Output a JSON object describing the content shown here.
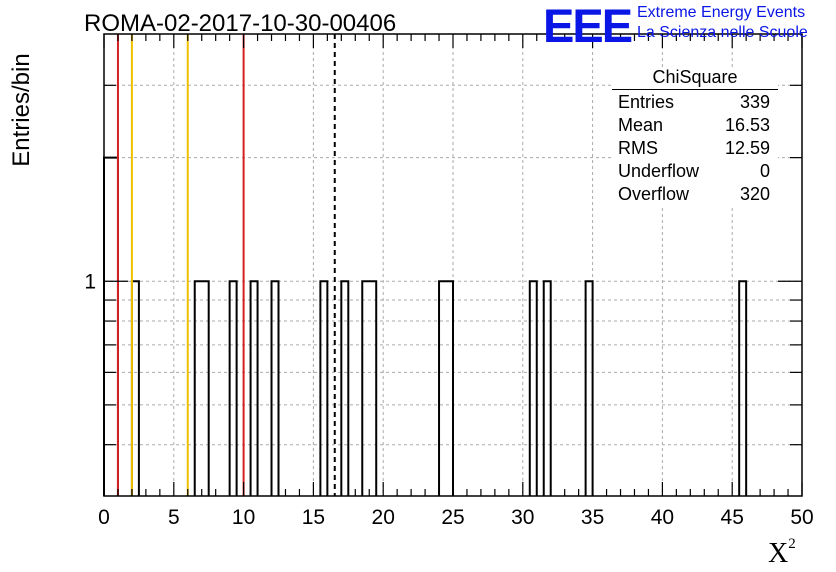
{
  "title": "ROMA-02-2017-10-30-00406",
  "logo": {
    "text": "EEE",
    "line1": "Extreme Energy Events",
    "line2": "La Scienza nelle Scuole"
  },
  "stats": {
    "title": "ChiSquare",
    "rows": [
      {
        "label": "Entries",
        "value": "339"
      },
      {
        "label": "Mean",
        "value": "16.53"
      },
      {
        "label": "RMS",
        "value": "12.59"
      },
      {
        "label": "Underflow",
        "value": "0"
      },
      {
        "label": "Overflow",
        "value": "320"
      }
    ]
  },
  "colors": {
    "red_line": "#d42020",
    "yellow_line": "#f0c000",
    "mean_line": "#000000",
    "grid": "#aaaaaa"
  },
  "chart_data": {
    "type": "histogram",
    "title": "ROMA-02-2017-10-30-00406",
    "xlabel": "X",
    "xlabel_superscript": "2",
    "ylabel": "Entries/bin",
    "xlim": [
      0,
      50
    ],
    "ylim": [
      0.3,
      4
    ],
    "yscale": "log",
    "bin_width": 0.5,
    "grid": true,
    "x_ticks": [
      "0",
      "5",
      "10",
      "15",
      "20",
      "25",
      "30",
      "35",
      "40",
      "45",
      "50"
    ],
    "y_tick_labels": [
      "1"
    ],
    "bins": [
      {
        "x0": 0.0,
        "x1": 1.0,
        "count": 2
      },
      {
        "x0": 2.0,
        "x1": 2.5,
        "count": 1
      },
      {
        "x0": 6.5,
        "x1": 7.5,
        "count": 1
      },
      {
        "x0": 9.0,
        "x1": 9.5,
        "count": 1
      },
      {
        "x0": 10.5,
        "x1": 11.0,
        "count": 1
      },
      {
        "x0": 12.0,
        "x1": 12.5,
        "count": 1
      },
      {
        "x0": 15.5,
        "x1": 16.0,
        "count": 1
      },
      {
        "x0": 17.0,
        "x1": 17.5,
        "count": 1
      },
      {
        "x0": 18.5,
        "x1": 19.5,
        "count": 1
      },
      {
        "x0": 24.0,
        "x1": 25.0,
        "count": 1
      },
      {
        "x0": 30.5,
        "x1": 31.0,
        "count": 1
      },
      {
        "x0": 31.5,
        "x1": 32.0,
        "count": 1
      },
      {
        "x0": 34.5,
        "x1": 35.0,
        "count": 1
      },
      {
        "x0": 45.5,
        "x1": 46.0,
        "count": 1
      }
    ],
    "vertical_lines": [
      {
        "x": 1.0,
        "color": "red"
      },
      {
        "x": 2.0,
        "color": "yellow"
      },
      {
        "x": 6.0,
        "color": "yellow"
      },
      {
        "x": 10.0,
        "color": "red"
      },
      {
        "x": 16.53,
        "color": "black",
        "style": "dashed"
      }
    ]
  }
}
